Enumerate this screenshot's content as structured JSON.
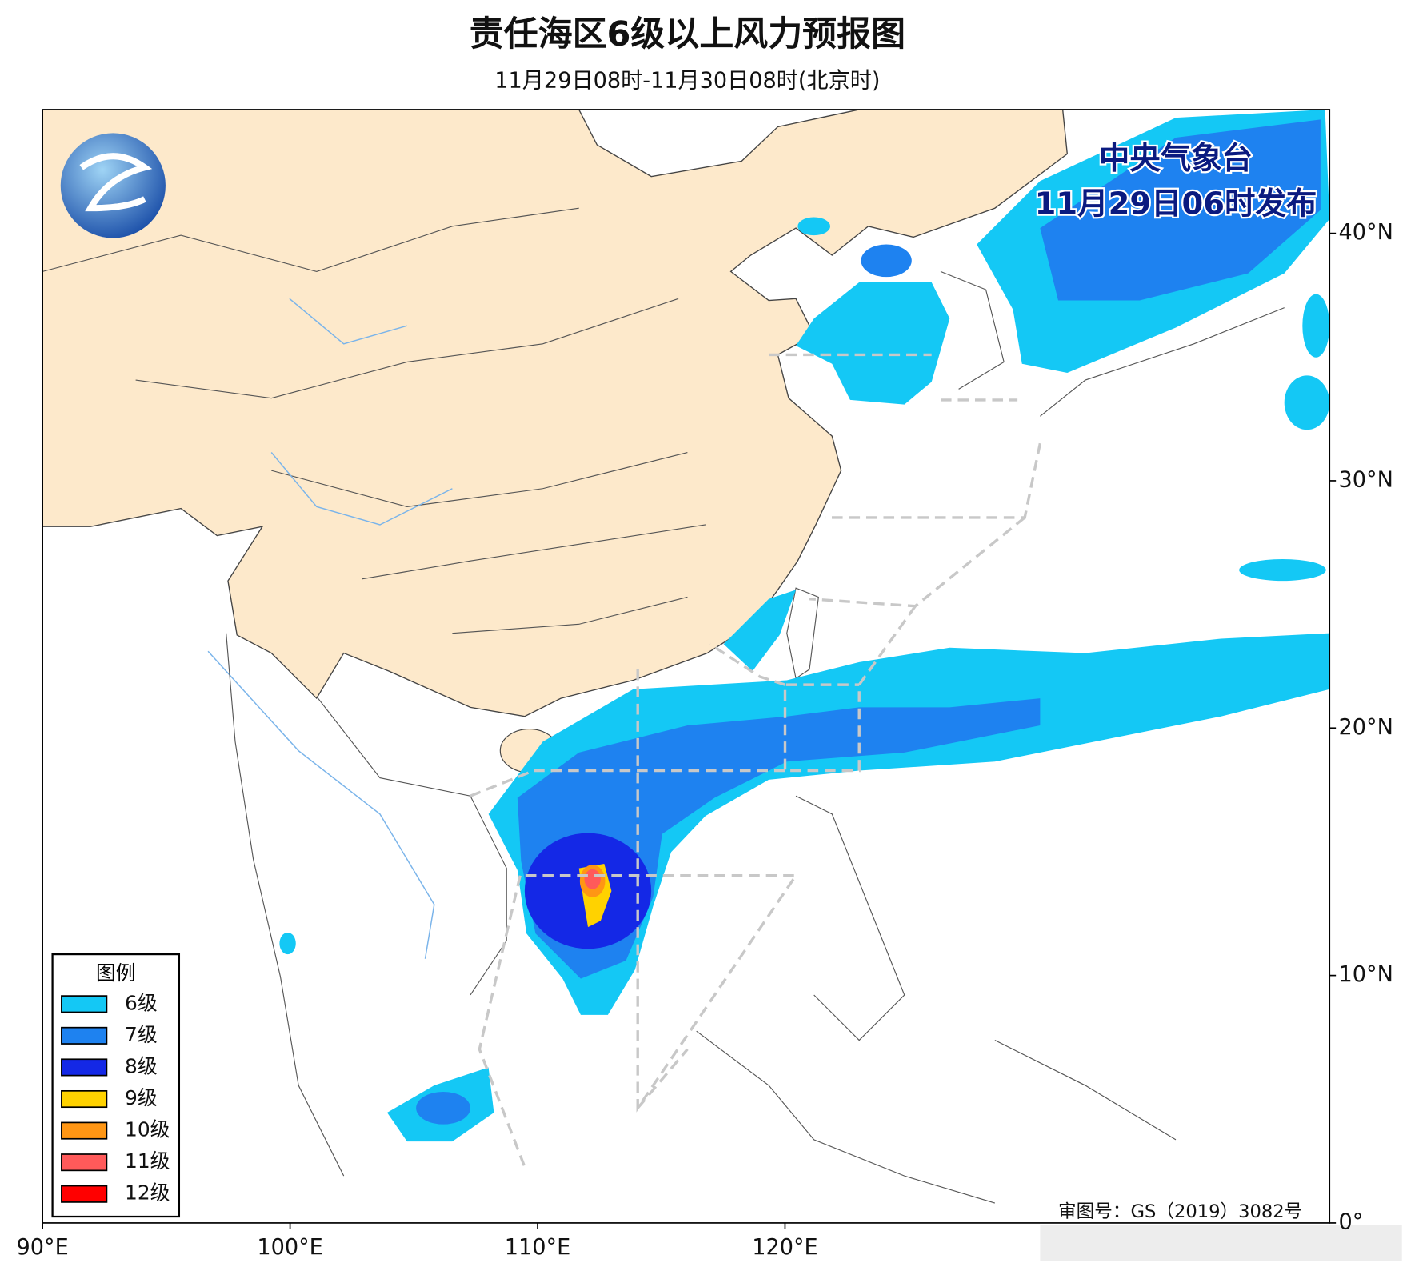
{
  "header": {
    "title": "责任海区6级以上风力预报图",
    "subtitle": "11月29日08时-11月30日08时(北京时)"
  },
  "issuer": {
    "name": "中央气象台",
    "time": "11月29日06时发布"
  },
  "legend": {
    "title": "图例",
    "items": [
      {
        "label": "6级",
        "color": "#14c8f5"
      },
      {
        "label": "7级",
        "color": "#1e82f0"
      },
      {
        "label": "8级",
        "color": "#1428e6"
      },
      {
        "label": "9级",
        "color": "#ffd200"
      },
      {
        "label": "10级",
        "color": "#ff9614"
      },
      {
        "label": "11级",
        "color": "#ff5a5a"
      },
      {
        "label": "12级",
        "color": "#ff0000"
      }
    ]
  },
  "map": {
    "xlim": [
      90,
      142
    ],
    "ylim": [
      0,
      45
    ],
    "xticks": [
      {
        "value": 90,
        "label": "90°E"
      },
      {
        "value": 100,
        "label": "100°E"
      },
      {
        "value": 110,
        "label": "110°E"
      },
      {
        "value": 120,
        "label": "120°E"
      }
    ],
    "yticks": [
      {
        "value": 0,
        "label": "0°"
      },
      {
        "value": 10,
        "label": "10°N"
      },
      {
        "value": 20,
        "label": "20°N"
      },
      {
        "value": 30,
        "label": "30°N"
      },
      {
        "value": 40,
        "label": "40°N"
      }
    ]
  },
  "review_number": "审图号：GS（2019）3082号"
}
